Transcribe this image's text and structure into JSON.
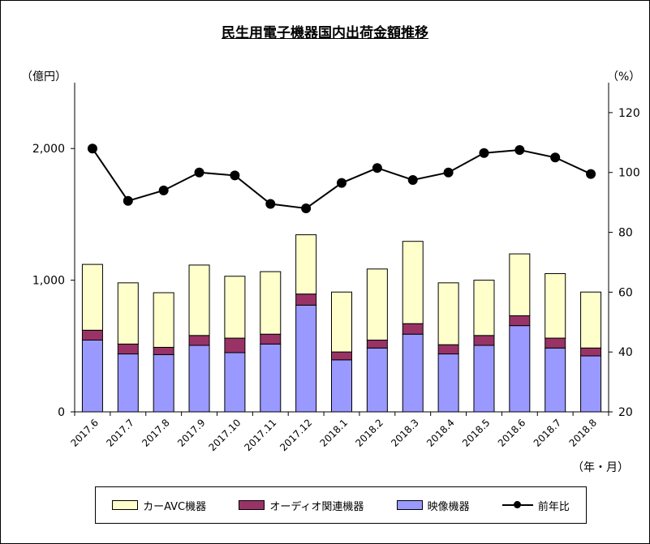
{
  "chart_data": {
    "type": "bar",
    "title": "民生用電子機器国内出荷金額推移",
    "left_axis_unit": "（億円）",
    "right_axis_unit": "（%）",
    "x_unit": "（年・月）",
    "categories": [
      "2017.6",
      "2017.7",
      "2017.8",
      "2017.9",
      "2017.10",
      "2017.11",
      "2017.12",
      "2018.1",
      "2018.2",
      "2018.3",
      "2018.4",
      "2018.5",
      "2018.6",
      "2018.7",
      "2018.8"
    ],
    "left_ticks": [
      "0",
      "1,000",
      "2,000"
    ],
    "right_ticks": [
      "20",
      "40",
      "60",
      "80",
      "100",
      "120"
    ],
    "ylim_left": [
      0,
      2500
    ],
    "ylim_right": [
      20,
      130
    ],
    "series": [
      {
        "name": "映像機器",
        "color": "#9999ff",
        "stack": true,
        "values": [
          545,
          440,
          435,
          505,
          450,
          515,
          810,
          395,
          485,
          590,
          440,
          505,
          655,
          485,
          425
        ]
      },
      {
        "name": "オーディオ関連機器",
        "color": "#993366",
        "stack": true,
        "values": [
          75,
          75,
          55,
          75,
          110,
          75,
          85,
          60,
          60,
          80,
          70,
          75,
          75,
          75,
          60
        ]
      },
      {
        "name": "カーAVC機器",
        "color": "#ffffcc",
        "stack": true,
        "values": [
          500,
          465,
          415,
          535,
          470,
          475,
          450,
          455,
          540,
          625,
          470,
          420,
          470,
          490,
          425
        ]
      },
      {
        "name": "前年比",
        "color": "#000000",
        "type": "line",
        "axis": "right",
        "values": [
          108,
          90.5,
          94,
          100,
          99,
          89.5,
          88,
          96.5,
          101.5,
          97.5,
          100,
          106.5,
          107.5,
          105,
          99.5
        ]
      }
    ],
    "legend_order": [
      "カーAVC機器",
      "オーディオ関連機器",
      "映像機器",
      "前年比"
    ],
    "legend_position": "bottom"
  }
}
